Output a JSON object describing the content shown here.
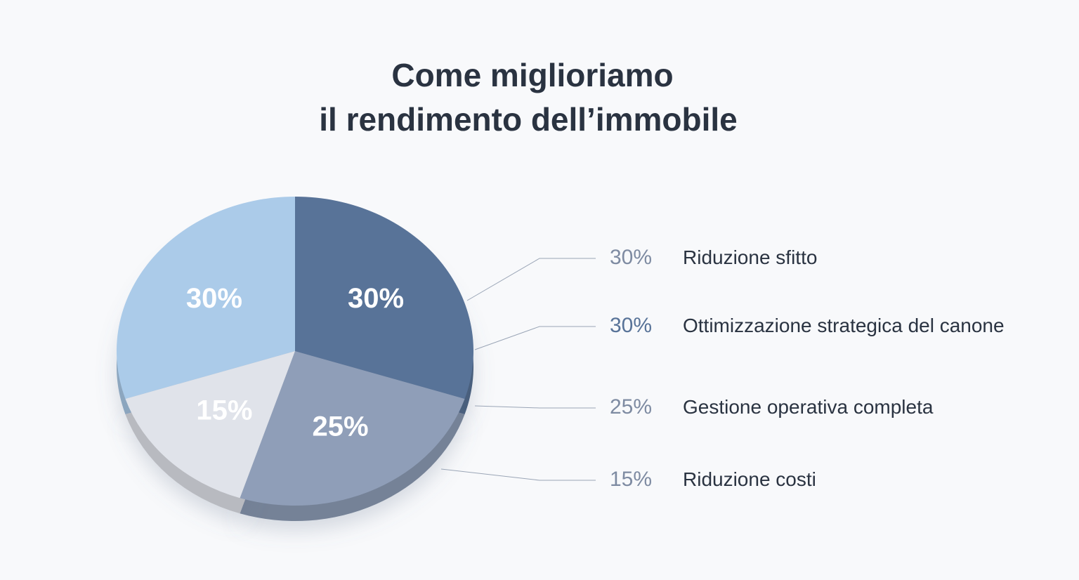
{
  "chart_data": {
    "type": "pie",
    "title": [
      "Come miglioriamo",
      "il rendimento dell’immobile"
    ],
    "categories": [
      "Riduzione sfitto",
      "Ottimizzazione strategica del canone",
      "Gestione operativa completa",
      "Riduzione costi"
    ],
    "values": [
      30,
      30,
      25,
      15
    ],
    "value_labels": [
      "30%",
      "30%",
      "25%",
      "15%"
    ],
    "colors": [
      "#abcbe9",
      "#587398",
      "#8f9eb8",
      "#e0e3ea"
    ]
  }
}
